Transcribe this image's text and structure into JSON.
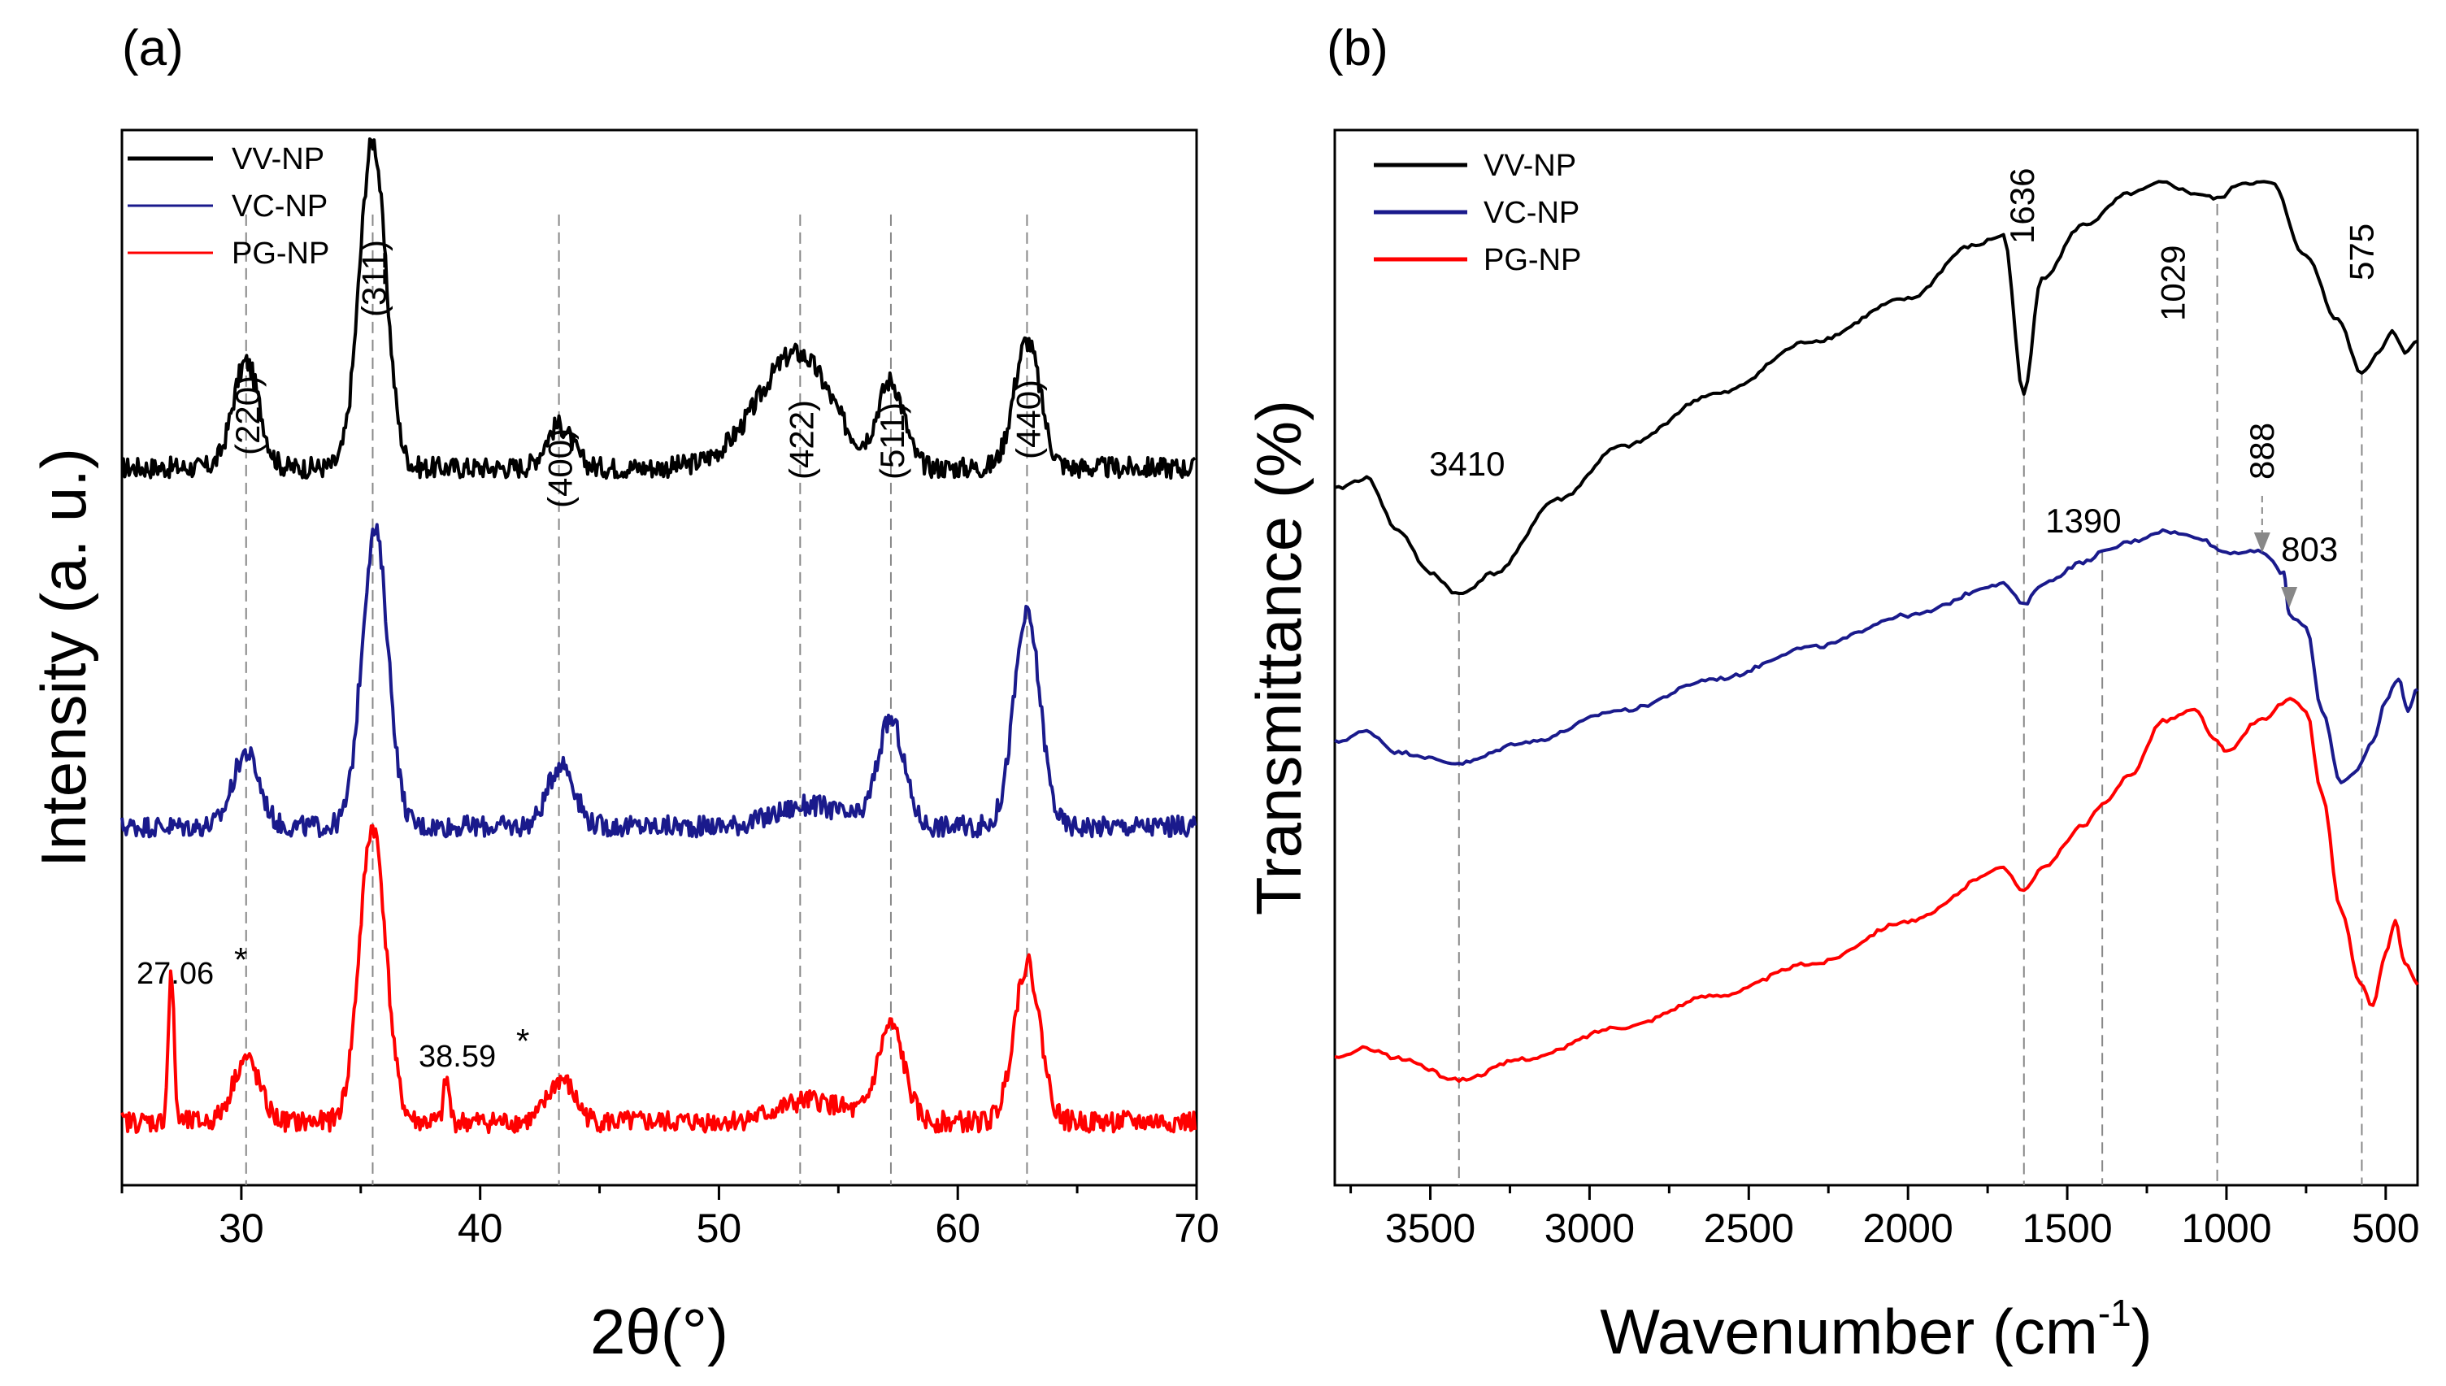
{
  "chart_data": [
    {
      "panel": "(a)",
      "type": "line",
      "xlabel": "2θ(°)",
      "ylabel": "Intensity (a. u.)",
      "xlim": [
        25,
        70
      ],
      "ylim": [
        0,
        100
      ],
      "xticks": [
        30,
        40,
        50,
        60,
        70
      ],
      "legend": {
        "position": "top-left",
        "entries": [
          "VV-NP",
          "VC-NP",
          "PG-NP"
        ]
      },
      "series": [
        {
          "name": "VV-NP",
          "color": "#000000",
          "baseline": 68,
          "peaks": [
            [
              30.2,
              10
            ],
            [
              35.5,
              31
            ],
            [
              43.3,
              4
            ],
            [
              51.5,
              2
            ],
            [
              53.4,
              10
            ],
            [
              57.2,
              8
            ],
            [
              62.9,
              12
            ]
          ]
        },
        {
          "name": "VC-NP",
          "color": "#1a1a8c",
          "baseline": 34,
          "peaks": [
            [
              30.2,
              7
            ],
            [
              35.6,
              28
            ],
            [
              43.4,
              6
            ],
            [
              53.8,
              2
            ],
            [
              57.2,
              10
            ],
            [
              62.9,
              20
            ]
          ]
        },
        {
          "name": "PG-NP",
          "color": "#ff0000",
          "baseline": 6,
          "peaks": [
            [
              27.06,
              14
            ],
            [
              30.2,
              6
            ],
            [
              35.5,
              28
            ],
            [
              38.59,
              4
            ],
            [
              43.4,
              4
            ],
            [
              53.9,
              2
            ],
            [
              57.2,
              9
            ],
            [
              62.9,
              15
            ]
          ]
        }
      ],
      "reflections": [
        {
          "label": "(220)",
          "x": 30.2
        },
        {
          "label": "(311)",
          "x": 35.5
        },
        {
          "label": "(400)",
          "x": 43.3
        },
        {
          "label": "(422)",
          "x": 53.4
        },
        {
          "label": "(511)",
          "x": 57.2
        },
        {
          "label": "(440)",
          "x": 62.9
        }
      ],
      "annotations": [
        {
          "text": "27.06",
          "star": "*",
          "x": 27.06
        },
        {
          "text": "38.59",
          "star": "*",
          "x": 38.59
        }
      ]
    },
    {
      "panel": "(b)",
      "type": "line",
      "xlabel": "Wavenumber (cm",
      "xlabel_sup": "-1",
      "xlabel_end": ")",
      "ylabel": "Transmittance (%)",
      "xlim": [
        3800,
        400
      ],
      "ylim": [
        0,
        100
      ],
      "xticks": [
        3500,
        3000,
        2500,
        2000,
        1500,
        1000,
        500
      ],
      "legend": {
        "position": "top-left",
        "entries": [
          "VV-NP",
          "VC-NP",
          "PG-NP"
        ]
      },
      "series": [
        {
          "name": "VV-NP",
          "color": "#000000",
          "points": [
            [
              3800,
              66
            ],
            [
              3700,
              67
            ],
            [
              3600,
              62
            ],
            [
              3500,
              58
            ],
            [
              3410,
              56
            ],
            [
              3300,
              58
            ],
            [
              3100,
              65
            ],
            [
              2900,
              70
            ],
            [
              2600,
              75
            ],
            [
              2300,
              80
            ],
            [
              2000,
              84
            ],
            [
              1800,
              89
            ],
            [
              1700,
              90
            ],
            [
              1636,
              75
            ],
            [
              1580,
              86
            ],
            [
              1450,
              91
            ],
            [
              1300,
              94
            ],
            [
              1200,
              95
            ],
            [
              1100,
              94
            ],
            [
              1029,
              93.5
            ],
            [
              950,
              95
            ],
            [
              860,
              95
            ],
            [
              750,
              88
            ],
            [
              650,
              82
            ],
            [
              575,
              77
            ],
            [
              520,
              79
            ],
            [
              480,
              81
            ],
            [
              440,
              79
            ],
            [
              400,
              80
            ]
          ]
        },
        {
          "name": "VC-NP",
          "color": "#1a1a8c",
          "points": [
            [
              3800,
              42
            ],
            [
              3700,
              43
            ],
            [
              3600,
              41
            ],
            [
              3410,
              40
            ],
            [
              3200,
              42
            ],
            [
              2900,
              45
            ],
            [
              2600,
              48
            ],
            [
              2300,
              51
            ],
            [
              2000,
              54
            ],
            [
              1700,
              57
            ],
            [
              1636,
              55
            ],
            [
              1580,
              57
            ],
            [
              1450,
              59
            ],
            [
              1390,
              60
            ],
            [
              1300,
              61
            ],
            [
              1200,
              62
            ],
            [
              1100,
              61.5
            ],
            [
              1000,
              60
            ],
            [
              888,
              60
            ],
            [
              820,
              58
            ],
            [
              803,
              54
            ],
            [
              750,
              53
            ],
            [
              700,
              45
            ],
            [
              640,
              38
            ],
            [
              600,
              39
            ],
            [
              540,
              42
            ],
            [
              500,
              46
            ],
            [
              460,
              48
            ],
            [
              430,
              45
            ],
            [
              400,
              47
            ]
          ]
        },
        {
          "name": "PG-NP",
          "color": "#ff0000",
          "points": [
            [
              3800,
              12
            ],
            [
              3700,
              13
            ],
            [
              3600,
              12
            ],
            [
              3410,
              10
            ],
            [
              3200,
              12
            ],
            [
              2900,
              15
            ],
            [
              2600,
              18
            ],
            [
              2300,
              21
            ],
            [
              2000,
              25
            ],
            [
              1700,
              30
            ],
            [
              1636,
              28
            ],
            [
              1580,
              30
            ],
            [
              1450,
              34
            ],
            [
              1390,
              36
            ],
            [
              1300,
              39
            ],
            [
              1200,
              44
            ],
            [
              1100,
              45
            ],
            [
              1029,
              42
            ],
            [
              1000,
              41
            ],
            [
              900,
              44
            ],
            [
              800,
              46
            ],
            [
              750,
              45
            ],
            [
              700,
              37
            ],
            [
              640,
              26
            ],
            [
              580,
              19
            ],
            [
              540,
              17
            ],
            [
              500,
              22
            ],
            [
              470,
              25
            ],
            [
              440,
              21
            ],
            [
              400,
              19
            ]
          ]
        }
      ],
      "band_labels": [
        {
          "label": "3410",
          "x": 3410,
          "orient": "horizontal"
        },
        {
          "label": "1636",
          "x": 1636,
          "orient": "vertical"
        },
        {
          "label": "1390",
          "x": 1390,
          "orient": "horizontal"
        },
        {
          "label": "1029",
          "x": 1029,
          "orient": "vertical"
        },
        {
          "label": "888",
          "x": 888,
          "orient": "vertical"
        },
        {
          "label": "803",
          "x": 803,
          "orient": "horizontal"
        },
        {
          "label": "575",
          "x": 575,
          "orient": "vertical"
        }
      ],
      "guide_lines": [
        3410,
        1636,
        1390,
        1029,
        575
      ]
    }
  ]
}
